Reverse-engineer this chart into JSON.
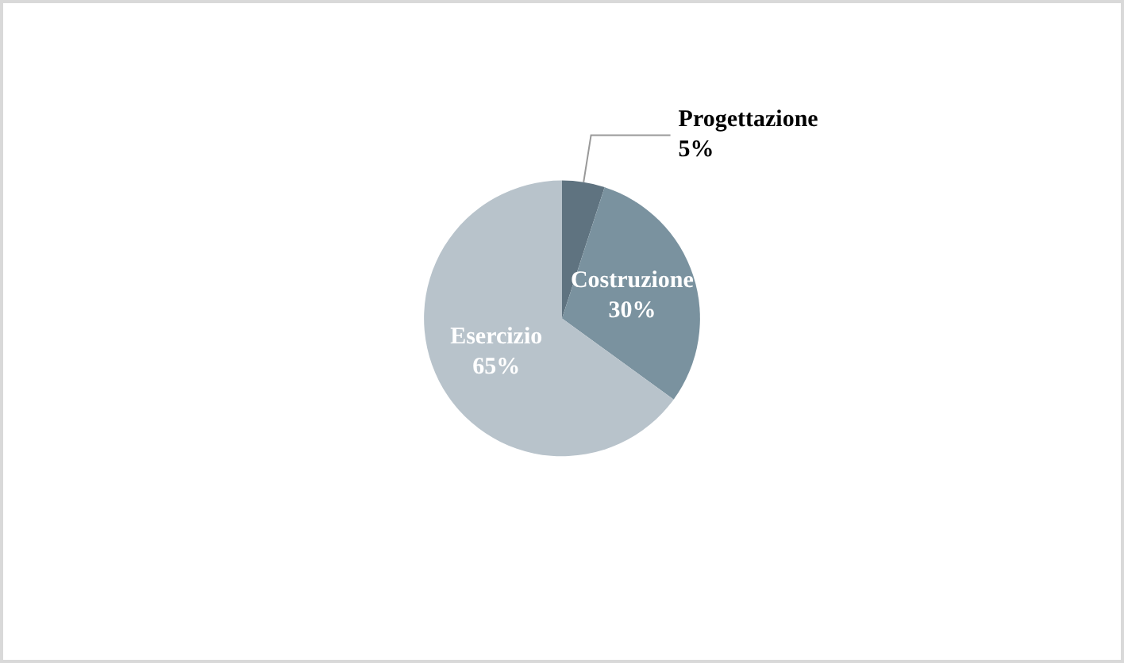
{
  "chart_data": {
    "type": "pie",
    "categories": [
      "Progettazione",
      "Costruzione",
      "Esercizio"
    ],
    "values": [
      5,
      30,
      65
    ],
    "colors": [
      "#5f7380",
      "#7a929f",
      "#b8c3cb"
    ],
    "value_labels": [
      "5%",
      "30%",
      "65%"
    ],
    "legend": false
  }
}
